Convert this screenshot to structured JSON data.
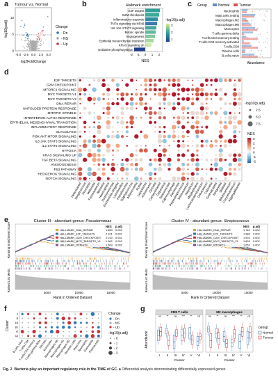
{
  "panel_labels": {
    "a": "a",
    "b": "b",
    "c": "c",
    "d": "d",
    "e": "e",
    "f": "f",
    "g": "g"
  },
  "a": {
    "title": "Tumour v.s. Normal",
    "ylabel": "-log10(padj)",
    "xlabel": "log2FoldChange",
    "xticks": [
      "-5.0",
      "-2.5",
      "0.0",
      "2.5",
      "5.0"
    ],
    "yticks": [
      "0",
      "5",
      "10"
    ],
    "legend_title": "Change",
    "legend": [
      {
        "label": "Dn",
        "color": "#2f77b5"
      },
      {
        "label": "NS",
        "color": "#aaaaaa"
      },
      {
        "label": "Up",
        "color": "#c8343a"
      }
    ]
  },
  "b": {
    "title": "Hallmark enrichment",
    "xlabel": "NES",
    "xticks": [
      "-2",
      "-1",
      "0",
      "1",
      "2"
    ],
    "legend_title": "-log10(p.adj)",
    "legend_ticks": [
      "1",
      "2",
      "3"
    ],
    "chart_data": {
      "type": "bar",
      "categories": [
        "E2F targets",
        "G2M checkpoint",
        "Inflammatory response",
        "TNFα signaling via NFκB",
        "IL6 JAK STAT3 signaling",
        "Mitotic spindle",
        "Angiogenesis",
        "Epithelial mesenchymal transition",
        "KRAS signaling dn",
        "Oxidative phosphorylation"
      ],
      "values": [
        2.1,
        2.0,
        1.8,
        1.7,
        1.6,
        1.5,
        1.4,
        1.2,
        0.9,
        -1.6
      ],
      "xlim": [
        -2.5,
        2.5
      ]
    }
  },
  "c": {
    "legend_title": "Group",
    "legend": [
      {
        "label": "Normal",
        "color": "#5b8fc7"
      },
      {
        "label": "Tumour",
        "color": "#d9534f"
      }
    ],
    "xlabel": "Abundance",
    "categories": [
      "Neutrophils",
      "Mast.cells.resting",
      "Macrophages.M2",
      "Macrophages.M0",
      "Monocytes",
      "T.cells.gamma.delta",
      "T.cells.CD4.memory.resting",
      "T.cells.CD4.memory.activated",
      "T.cells.CD8",
      "Plasma.cells",
      "B.cells.naive"
    ]
  },
  "d": {
    "rows": [
      "E2F TARGETS",
      "G2M CHECKPOINT",
      "MTORC1 SIGNALING",
      "MYC TARGETS V1",
      "MYC TARGETS V2",
      "DNA REPAIR",
      "UNFOLDED PROTEIN RESPONSE",
      "MITOTIC SPINDLE",
      "INTERFERON ALPHA RESPONSE",
      "EPITHELIAL MESENCHYMAL TRANSITION",
      "INFLAMMATORY RESPONSE",
      "GLYCOLYSIS",
      "PI3K AKT MTOR SIGNALING",
      "IL6 JAK STAT3 SIGNALING",
      "IL2 STAT5 SIGNALING",
      "HYPOXIA",
      "KRAS SIGNALING UP",
      "TGF BETA SIGNALING",
      "ANGIOGENESIS",
      "P53 PATHWAY",
      "HEDGEHOG SIGNALING",
      "NOTCH SIGNALING"
    ],
    "cols": [
      "Helicobacter",
      "Streptococcus",
      "Prevotella",
      "Veillonella",
      "Fusobacterium",
      "Neisseria",
      "Haemophilus",
      "Porphyromonas",
      "Escherichia-Shigella",
      "Lactobacillus",
      "Pseudomonas",
      "Staphylococcus",
      "Alloprevotella",
      "Rothia",
      "Leptotrichia",
      "Actinomyces",
      "Gemella",
      "Campylobacter",
      "Treponema",
      "Selenomonas",
      "Capnocytophaga",
      "Parvimonas",
      "Peptostreptococcus",
      "Solobacterium",
      "Atopobium",
      "Megasphaera",
      "Lachnoanaerobaculum",
      "Oribacterium",
      "Catonella",
      "Granulicatella",
      "Bergeyella",
      "Dialister",
      "Bifidobacterium",
      "Corynebacterium",
      "Aggregatibacter"
    ],
    "size_title": "-log10(p.adj)",
    "size_ticks": [
      "2.5",
      "5.0",
      "7.5"
    ],
    "color_title": "NES",
    "color_ticks": [
      "3",
      "2",
      "1",
      "0",
      "-1",
      "-2"
    ]
  },
  "e": {
    "left": {
      "title_prefix": "Cluster III - abundant genus: ",
      "title_genus": "Pseudomonas",
      "ylabel_top": "Running Enrichment Score",
      "ylabel_bottom": "Ranked List Metric",
      "xlabel": "Rank in Ordered Dataset",
      "xticks": [
        "5000",
        "10000",
        "15000"
      ],
      "sets": [
        {
          "name": "HALLMARK_DNA_REPAIR",
          "color": "#e5a23a"
        },
        {
          "name": "HALLMARK_E2F_TARGETS",
          "color": "#2f6fa8"
        },
        {
          "name": "HALLMARK_G2M_CHECKPOINT",
          "color": "#c8343a"
        },
        {
          "name": "HALLMARK_MYC_TARGETS_V1",
          "color": "#3a9e6f"
        },
        {
          "name": "HALLMARK_OXPHOS",
          "color": "#7b4f9e"
        }
      ],
      "table_head": [
        "NES",
        "p.adj"
      ],
      "table": [
        [
          "1.850",
          "0.002"
        ],
        [
          "2.101",
          "0.002"
        ],
        [
          "2.010",
          "0.002"
        ],
        [
          "1.962",
          "0.002"
        ],
        [
          "1.683",
          "0.002"
        ]
      ]
    },
    "right": {
      "title_prefix": "Cluster IV - abundant genus: ",
      "title_genus": "Streptococcus",
      "ylabel_top": "Running Enrichment Score",
      "ylabel_bottom": "Ranked List Metric",
      "xlabel": "Rank in Ordered Dataset",
      "xticks": [
        "5000",
        "10000",
        "15000"
      ],
      "sets": [
        {
          "name": "HALLMARK_DNA_REPAIR",
          "color": "#e5a23a"
        },
        {
          "name": "HALLMARK_E2F_TARGETS",
          "color": "#2f6fa8"
        },
        {
          "name": "HALLMARK_G2M_CHECKPOINT",
          "color": "#c8343a"
        },
        {
          "name": "HALLMARK_MYC_TARGETS_V1",
          "color": "#3a9e6f"
        },
        {
          "name": "HALLMARK_MTORC1",
          "color": "#7b4f9e"
        }
      ],
      "table_head": [
        "NES",
        "p.adj"
      ],
      "table": [
        [
          "1.740",
          "0.002"
        ],
        [
          "1.980",
          "0.002"
        ],
        [
          "1.901",
          "0.002"
        ],
        [
          "1.803",
          "0.002"
        ],
        [
          "1.652",
          "0.002"
        ]
      ]
    }
  },
  "f": {
    "ylabel": "Cluster",
    "rows": [
      "I",
      "II",
      "III",
      "IV",
      "V",
      "VI"
    ],
    "cols": [
      "B.cells.naive",
      "T.cells.CD8",
      "T.cells.CD4.memory",
      "T.cells.gamma.delta",
      "NK.cells",
      "Monocytes",
      "Macrophages.M0",
      "Macrophages.M1",
      "Macrophages.M2",
      "Dendritic.cells",
      "Mast.cells",
      "Neutrophils",
      "Eosinophils",
      "Plasma.cells"
    ],
    "legend_title": "Change",
    "legend": [
      {
        "label": "Dn",
        "color": "#2f77b5"
      },
      {
        "label": "NS",
        "color": "#aaaaaa"
      },
      {
        "label": "Up",
        "color": "#c8343a"
      }
    ],
    "size_title": "-log10(p.adj)",
    "size_ticks": [
      "0",
      "1",
      "2",
      "3"
    ]
  },
  "g": {
    "facets": [
      "CD8 T cells",
      "M2 macrophages"
    ],
    "ylabel": "Abundance",
    "xlabel": "Cluster",
    "xticks": [
      "I",
      "II",
      "III",
      "IV",
      "V",
      "VI"
    ],
    "sig": [
      "ns",
      "**",
      "ns",
      "***",
      "**",
      "ns"
    ],
    "legend_title": "Group",
    "legend": [
      {
        "label": "Normal",
        "color": "#3b6fb0"
      },
      {
        "label": "Tumour",
        "color": "#c8343a"
      }
    ]
  },
  "caption": {
    "fig": "Fig. 2",
    "bold": "Bacteria play an important regulatory role in the TIME of GC.",
    "a": "a",
    "rest": "Differential analysis demonstrating differentially expressed genes"
  }
}
